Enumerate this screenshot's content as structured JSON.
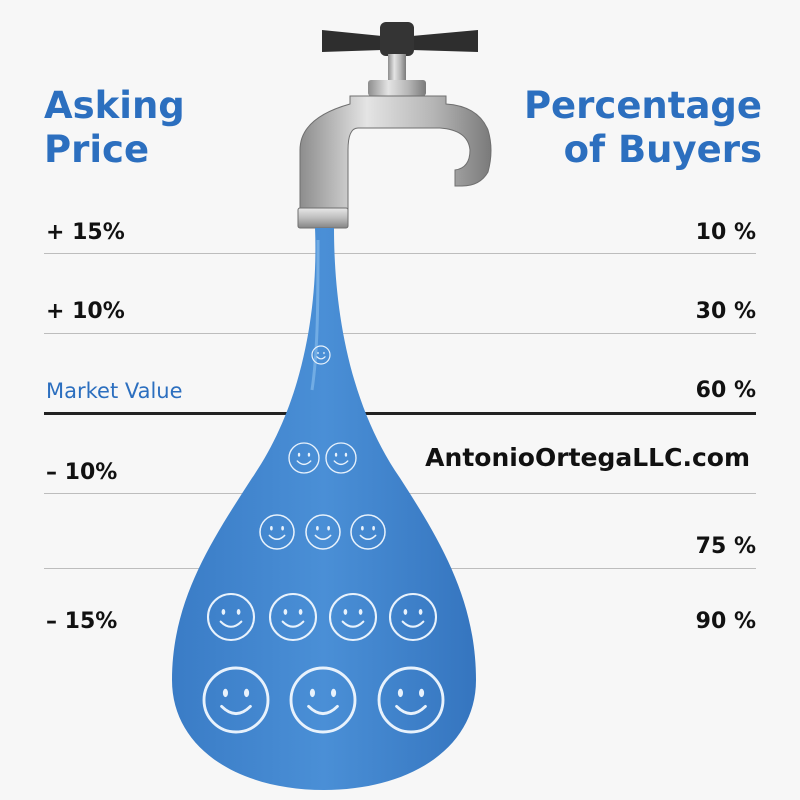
{
  "header": {
    "left_line1": "Asking",
    "left_line2": "Price",
    "right_line1": "Percentage",
    "right_line2": "of Buyers"
  },
  "rows": [
    {
      "price": "+ 15%",
      "buyers": "10 %"
    },
    {
      "price": "+ 10%",
      "buyers": "30 %"
    },
    {
      "price": "Market Value",
      "buyers": "60 %"
    },
    {
      "price": "– 10%",
      "buyers": ""
    },
    {
      "price": "",
      "buyers": "75 %"
    },
    {
      "price": "– 15%",
      "buyers": "90 %"
    }
  ],
  "website": "AntonioOrtegaLLC.com",
  "colors": {
    "accent": "#2c6fbf",
    "water": "#3a80cc",
    "faucet": "#a9a9a9"
  },
  "icons": [
    "faucet-icon",
    "water-drop-icon",
    "smiley-face-icon"
  ]
}
